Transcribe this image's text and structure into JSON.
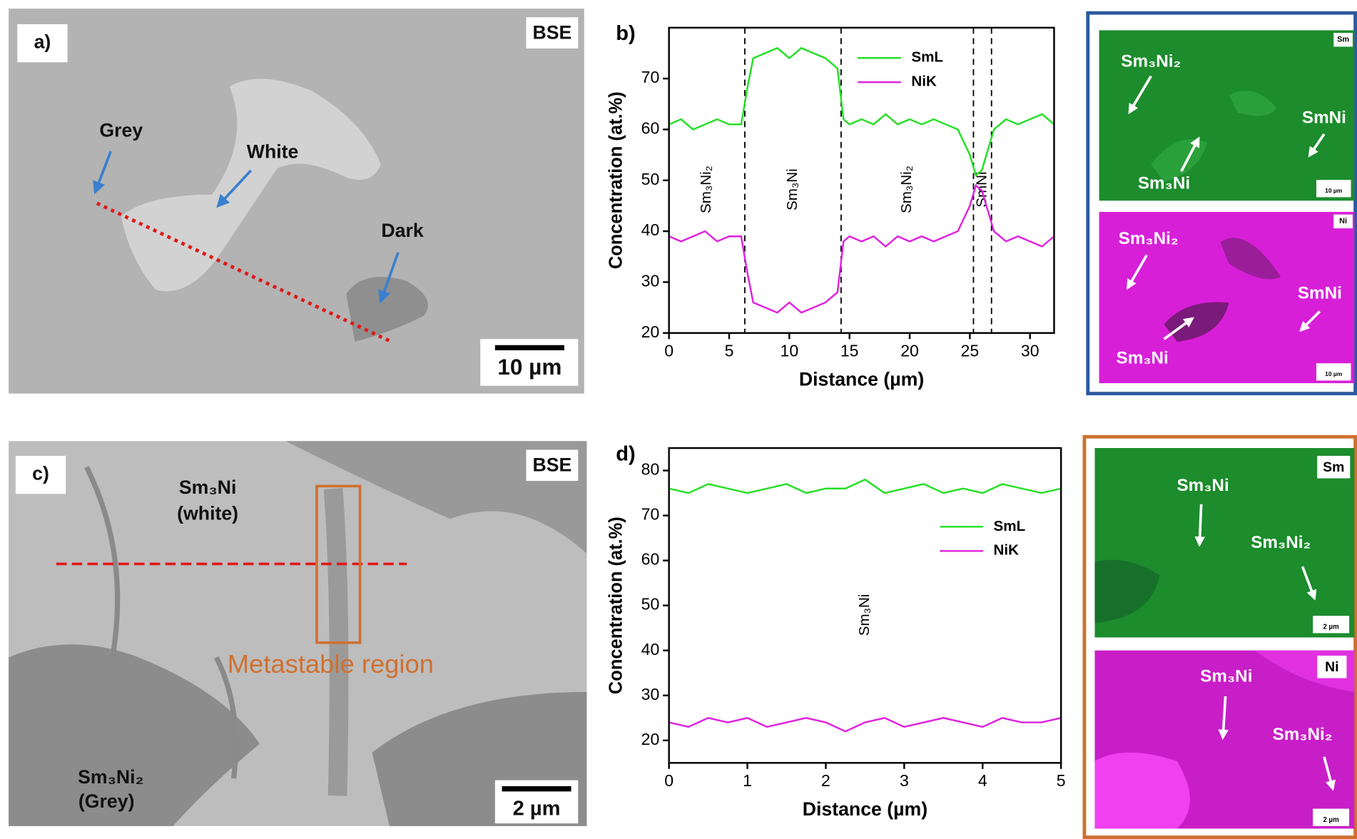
{
  "chart_data": [
    {
      "type": "line",
      "panel_label": "b)",
      "xlabel": "Distance (µm)",
      "ylabel": "Concentration (at.%)",
      "xlim": [
        0,
        32
      ],
      "xticks": [
        0,
        5,
        10,
        15,
        20,
        25,
        30
      ],
      "ylim": [
        20,
        80
      ],
      "yticks": [
        20,
        30,
        40,
        50,
        60,
        70
      ],
      "legend": "upper center",
      "x": [
        0,
        1,
        2,
        3,
        4,
        5,
        6,
        6.5,
        7,
        8,
        9,
        10,
        11,
        12,
        13,
        14,
        14.5,
        15,
        16,
        17,
        18,
        19,
        20,
        21,
        22,
        23,
        24,
        25,
        25.5,
        26,
        26.5,
        27,
        28,
        29,
        30,
        31,
        32
      ],
      "series": [
        {
          "name": "SmL",
          "color": "#22e022",
          "values": [
            61,
            62,
            60,
            61,
            62,
            61,
            61,
            68,
            74,
            75,
            76,
            74,
            76,
            75,
            74,
            72,
            62,
            61,
            62,
            61,
            63,
            61,
            62,
            61,
            62,
            61,
            60,
            55,
            51,
            52,
            56,
            60,
            62,
            61,
            62,
            63,
            61
          ]
        },
        {
          "name": "NiK",
          "color": "#e020e0",
          "values": [
            39,
            38,
            39,
            40,
            38,
            39,
            39,
            32,
            26,
            25,
            24,
            26,
            24,
            25,
            26,
            28,
            38,
            39,
            38,
            39,
            37,
            39,
            38,
            39,
            38,
            39,
            40,
            45,
            49,
            48,
            44,
            40,
            38,
            39,
            38,
            37,
            39
          ]
        }
      ],
      "phase_boundaries": [
        6.3,
        14.3,
        25.3,
        26.8
      ],
      "regions": [
        "Sm₃Ni₂",
        "Sm₃Ni",
        "Sm₃Ni₂",
        "SmNi"
      ]
    },
    {
      "type": "line",
      "panel_label": "d)",
      "xlabel": "Distance (µm)",
      "ylabel": "Concentration (at.%)",
      "xlim": [
        0,
        5
      ],
      "xticks": [
        0,
        1,
        2,
        3,
        4,
        5
      ],
      "ylim": [
        15,
        85
      ],
      "yticks": [
        20,
        30,
        40,
        50,
        60,
        70,
        80
      ],
      "legend": "center right",
      "x": [
        0,
        0.25,
        0.5,
        0.75,
        1,
        1.25,
        1.5,
        1.75,
        2,
        2.25,
        2.5,
        2.75,
        3,
        3.25,
        3.5,
        3.75,
        4,
        4.25,
        4.5,
        4.75,
        5
      ],
      "series": [
        {
          "name": "SmL",
          "color": "#22e022",
          "values": [
            76,
            75,
            77,
            76,
            75,
            76,
            77,
            75,
            76,
            76,
            78,
            75,
            76,
            77,
            75,
            76,
            75,
            77,
            76,
            75,
            76
          ]
        },
        {
          "name": "NiK",
          "color": "#e020e0",
          "values": [
            24,
            23,
            25,
            24,
            25,
            23,
            24,
            25,
            24,
            22,
            24,
            25,
            23,
            24,
            25,
            24,
            23,
            25,
            24,
            24,
            25
          ]
        }
      ],
      "phase_boundaries": [],
      "regions": [
        "Sm₃Ni"
      ]
    }
  ],
  "panels": {
    "a": {
      "label": "a)",
      "mode": "BSE",
      "annotations": [
        "Grey",
        "White",
        "Dark"
      ],
      "scale_bar": "10 µm"
    },
    "b_maps": [
      {
        "element": "Sm",
        "scale_bar": "10 µm",
        "annotations": [
          "Sm₃Ni₂",
          "SmNi",
          "Sm₃Ni"
        ]
      },
      {
        "element": "Ni",
        "scale_bar": "10 µm",
        "annotations": [
          "Sm₃Ni₂",
          "SmNi",
          "Sm₃Ni"
        ]
      }
    ],
    "c": {
      "label": "c)",
      "mode": "BSE",
      "annotations": [
        "Sm₃Ni",
        "(white)",
        "Sm₃Ni₂",
        "(Grey)",
        "Metastable region"
      ],
      "scale_bar": "2 µm"
    },
    "d_maps": [
      {
        "element": "Sm",
        "scale_bar": "2 µm",
        "annotations": [
          "Sm₃Ni",
          "Sm₃Ni₂"
        ]
      },
      {
        "element": "Ni",
        "scale_bar": "2 µm",
        "annotations": [
          "Sm₃Ni",
          "Sm₃Ni₂"
        ]
      }
    ]
  }
}
